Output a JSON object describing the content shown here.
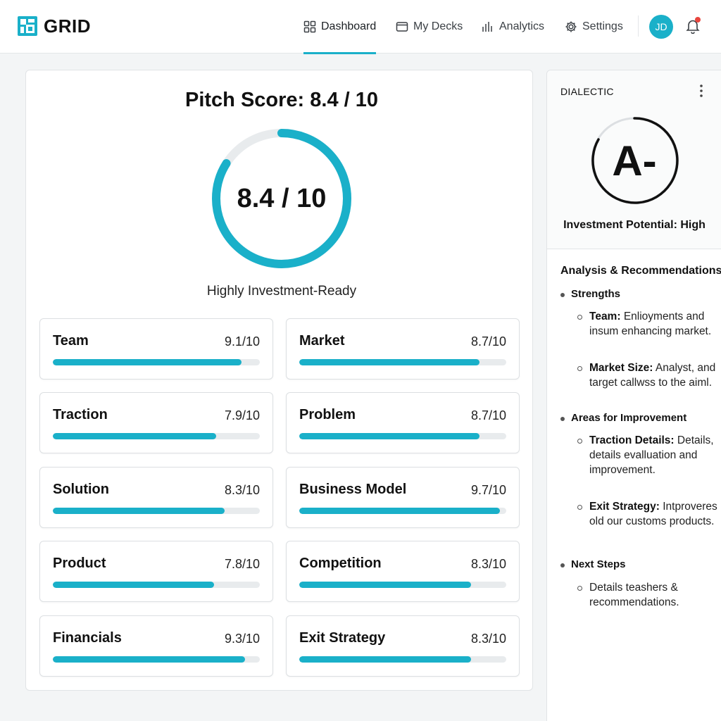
{
  "brand": {
    "name": "GRID",
    "accent": "#1ab0c9"
  },
  "nav": {
    "items": [
      {
        "label": "Dashboard",
        "icon": "grid-icon",
        "active": true
      },
      {
        "label": "My Decks",
        "icon": "folder-icon",
        "active": false
      },
      {
        "label": "Analytics",
        "icon": "bar-chart-icon",
        "active": false
      },
      {
        "label": "Settings",
        "icon": "gear-icon",
        "active": false
      }
    ],
    "user_initials": "JD",
    "notification_indicator": true
  },
  "score": {
    "title": "Pitch Score: 8.4 / 10",
    "value": 8.4,
    "max": 10,
    "gauge_text": "8.4 / 10",
    "caption": "Highly Investment-Ready"
  },
  "metrics": [
    {
      "label": "Team",
      "score_text": "9.1/10",
      "value": 9.1
    },
    {
      "label": "Market",
      "score_text": "8.7/10",
      "value": 8.7
    },
    {
      "label": "Traction",
      "score_text": "7.9/10",
      "value": 7.9
    },
    {
      "label": "Problem",
      "score_text": "8.7/10",
      "value": 8.7
    },
    {
      "label": "Solution",
      "score_text": "8.3/10",
      "value": 8.3
    },
    {
      "label": "Business Model",
      "score_text": "9.7/10",
      "value": 9.7
    },
    {
      "label": "Product",
      "score_text": "7.8/10",
      "value": 7.8
    },
    {
      "label": "Competition",
      "score_text": "8.3/10",
      "value": 8.3
    },
    {
      "label": "Financials",
      "score_text": "9.3/10",
      "value": 9.3
    },
    {
      "label": "Exit Strategy",
      "score_text": "8.3/10",
      "value": 8.3
    }
  ],
  "side": {
    "label": "DIALECTIC",
    "grade": "A-",
    "grade_caption": "Investment Potential: High",
    "analysis_title": "Analysis & Recommendations",
    "strengths_title": "Strengths",
    "strengths": [
      {
        "lead": "Team:",
        "text": " Enlioyments and insum enhancing market."
      },
      {
        "lead": "Market Size:",
        "text": " Analyst, and target callwss to the aiml."
      }
    ],
    "improvement_title": "Areas for Improvement",
    "improvements": [
      {
        "lead": "Traction Details:",
        "text": " Details, details evalluation and improvement."
      },
      {
        "lead": "Exit Strategy:",
        "text": " Intproveres old our customs products."
      }
    ],
    "next_title": "Next Steps",
    "next_steps": [
      {
        "text": "Details teashers & recommendations."
      }
    ]
  }
}
